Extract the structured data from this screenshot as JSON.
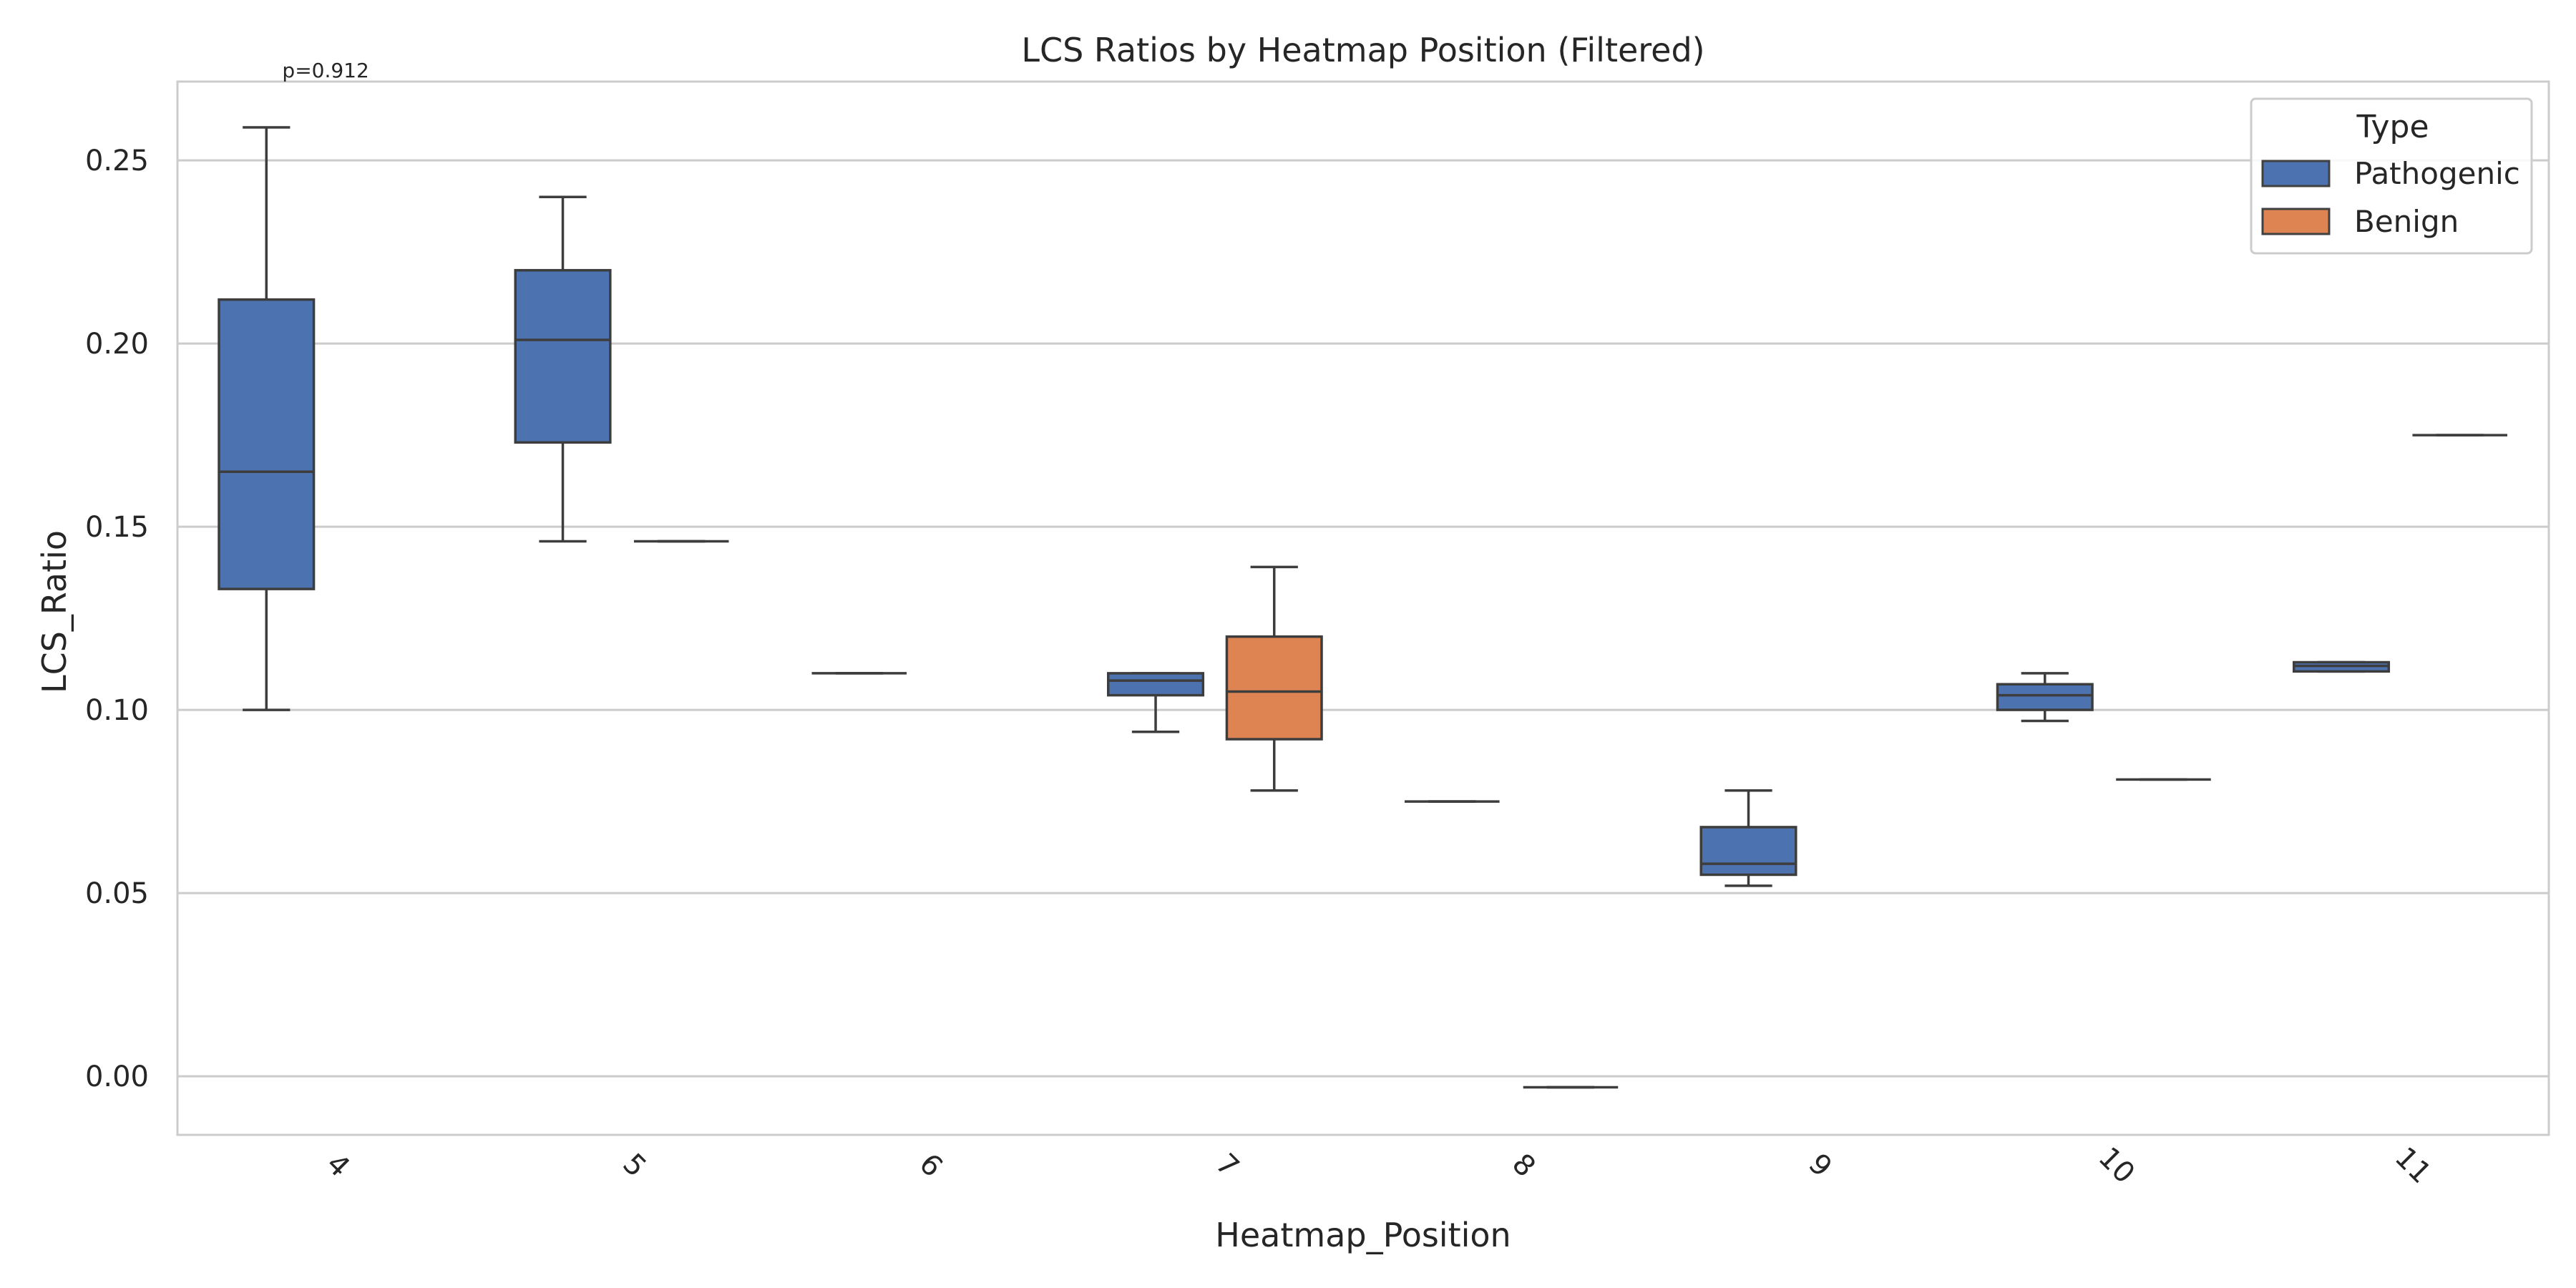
{
  "chart_data": {
    "type": "box",
    "title": "LCS Ratios by Heatmap Position (Filtered)",
    "xlabel": "Heatmap_Position",
    "ylabel": "LCS_Ratio",
    "categories": [
      "4",
      "5",
      "6",
      "7",
      "8",
      "9",
      "10",
      "11"
    ],
    "ylim": [
      -0.016,
      0.2715
    ],
    "yticks": [
      0.0,
      0.05,
      0.1,
      0.15,
      0.2,
      0.25
    ],
    "ytick_labels": [
      "0.00",
      "0.05",
      "0.10",
      "0.15",
      "0.20",
      "0.25"
    ],
    "grid": "horizontal",
    "legend": {
      "title": "Type",
      "position": "top-right",
      "entries": [
        {
          "name": "Pathogenic",
          "color": "#4c72b0"
        },
        {
          "name": "Benign",
          "color": "#dd8452"
        }
      ]
    },
    "annotations": [
      {
        "text": "p=0.912",
        "category": "4"
      }
    ],
    "series": [
      {
        "name": "Pathogenic",
        "color": "#4c72b0",
        "boxes": [
          {
            "category": "4",
            "whisker_low": 0.1,
            "q1": 0.133,
            "median": 0.165,
            "q3": 0.212,
            "whisker_high": 0.259
          },
          {
            "category": "5",
            "whisker_low": 0.146,
            "q1": 0.173,
            "median": 0.201,
            "q3": 0.22,
            "whisker_high": 0.24
          },
          {
            "category": "6",
            "whisker_low": 0.11,
            "q1": 0.11,
            "median": 0.11,
            "q3": 0.11,
            "whisker_high": 0.11
          },
          {
            "category": "7",
            "whisker_low": 0.094,
            "q1": 0.104,
            "median": 0.108,
            "q3": 0.11,
            "whisker_high": 0.11
          },
          {
            "category": "8",
            "whisker_low": 0.075,
            "q1": 0.075,
            "median": 0.075,
            "q3": 0.075,
            "whisker_high": 0.075
          },
          {
            "category": "9",
            "whisker_low": 0.052,
            "q1": 0.055,
            "median": 0.058,
            "q3": 0.068,
            "whisker_high": 0.078
          },
          {
            "category": "10",
            "whisker_low": 0.097,
            "q1": 0.1,
            "median": 0.104,
            "q3": 0.107,
            "whisker_high": 0.11
          },
          {
            "category": "11",
            "whisker_low": 0.1105,
            "q1": 0.1105,
            "median": 0.112,
            "q3": 0.113,
            "whisker_high": 0.113
          }
        ]
      },
      {
        "name": "Benign",
        "color": "#dd8452",
        "boxes": [
          {
            "category": "5",
            "whisker_low": 0.146,
            "q1": 0.146,
            "median": 0.146,
            "q3": 0.146,
            "whisker_high": 0.146
          },
          {
            "category": "7",
            "whisker_low": 0.078,
            "q1": 0.092,
            "median": 0.105,
            "q3": 0.12,
            "whisker_high": 0.139
          },
          {
            "category": "8",
            "whisker_low": -0.003,
            "q1": -0.003,
            "median": -0.003,
            "q3": -0.003,
            "whisker_high": -0.003
          },
          {
            "category": "10",
            "whisker_low": 0.081,
            "q1": 0.081,
            "median": 0.081,
            "q3": 0.081,
            "whisker_high": 0.081
          },
          {
            "category": "11",
            "whisker_low": 0.175,
            "q1": 0.175,
            "median": 0.175,
            "q3": 0.175,
            "whisker_high": 0.175
          }
        ]
      }
    ]
  }
}
